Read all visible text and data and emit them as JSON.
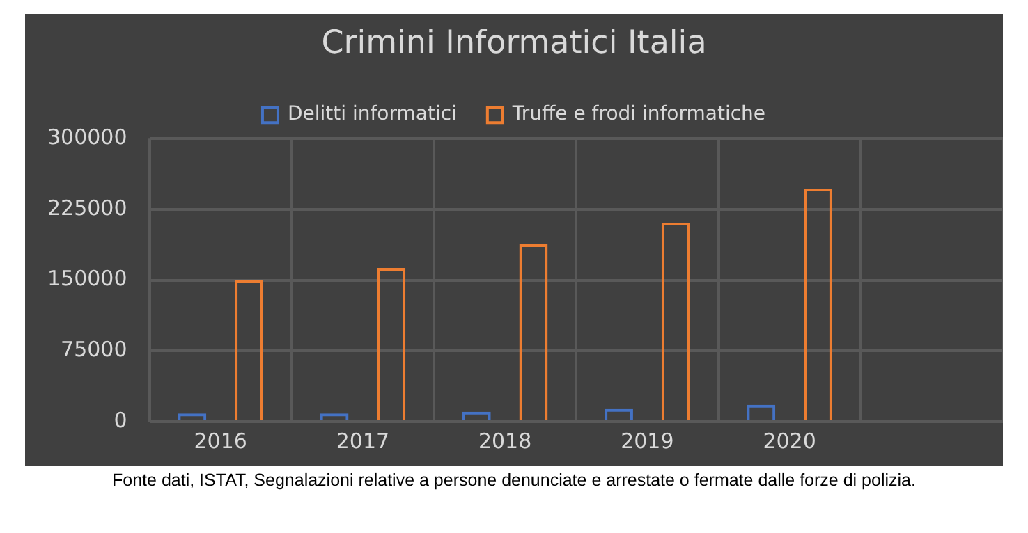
{
  "chart_data": {
    "type": "bar",
    "title": "Crimini Informatici Italia",
    "categories": [
      "2016",
      "2017",
      "2018",
      "2019",
      "2020",
      null
    ],
    "series": [
      {
        "name": "Delitti informatici",
        "color": "#4472c4",
        "values": [
          8700,
          8700,
          10600,
          13500,
          17800,
          null
        ]
      },
      {
        "name": "Truffe e frodi informatiche",
        "color": "#ed7d31",
        "values": [
          150000,
          163000,
          188000,
          211000,
          247000,
          null
        ]
      }
    ],
    "ylim": [
      0,
      300000
    ],
    "yticks": [
      0,
      75000,
      150000,
      225000,
      300000
    ],
    "grid": true,
    "legend": "top",
    "annotations": [
      "Fonte dati, ISTAT, Segnalazioni relative a persone denunciate e arrestate o fermate dalle forze di polizia."
    ]
  }
}
